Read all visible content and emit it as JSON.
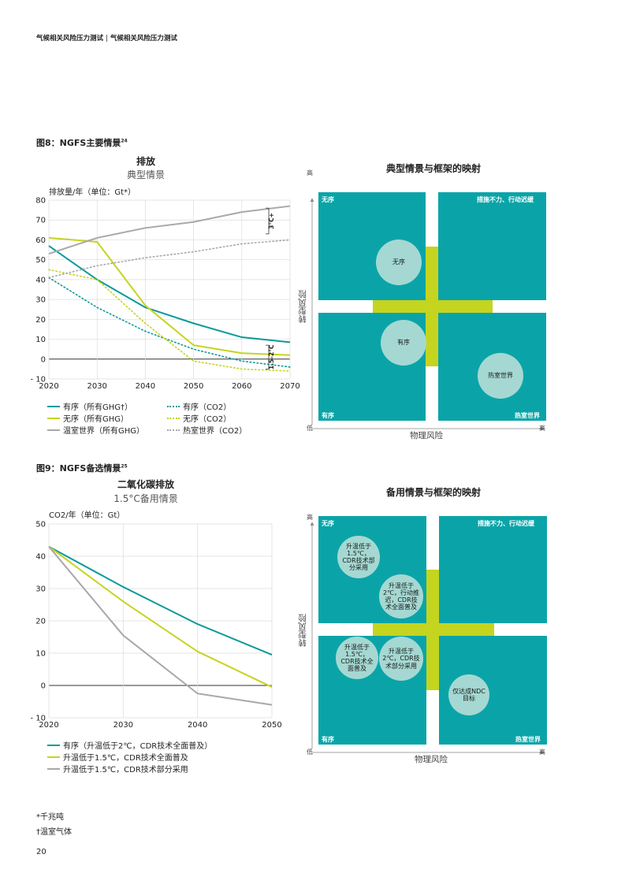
{
  "header": {
    "left": "气候相关风险压力测试",
    "separator": "|",
    "right": "气候相关风险压力测试"
  },
  "figure8": {
    "title": "图8：NGFS主要情景",
    "note_ref": "24",
    "chart_title": "排放",
    "chart_subtitle": "典型情景",
    "unit_label": "排放量/年（单位：Gt*）",
    "band_top": "3°C+",
    "band_bottom": "1.5–2°C",
    "legend": [
      "有序（所有GHG†）",
      "有序（CO2）",
      "无序（所有GHG）",
      "无序（CO2）",
      "温室世界（所有GHG）",
      "热室世界（CO2）"
    ],
    "map": {
      "title": "典型情景与框架的映射",
      "y_axis": "转型风险",
      "x_axis": "物理风险",
      "high": "高",
      "low": "低",
      "quadrants": {
        "tl": "无序",
        "tr": "措施不力、行动迟缓",
        "bl": "有序",
        "br": "热室世界"
      },
      "circles": [
        "无序",
        "有序",
        "热室世界"
      ]
    }
  },
  "figure9": {
    "title": "图9：NGFS备选情景",
    "note_ref": "25",
    "chart_title": "二氧化碳排放",
    "chart_subtitle": "1.5°C备用情景",
    "unit_label": "CO2/年（单位：Gt）",
    "legend": [
      "有序（升温低于2℃，CDR技术全面普及）",
      "升温低于1.5℃，CDR技术全面普及",
      "升温低于1.5℃，CDR技术部分采用"
    ],
    "map": {
      "title": "备用情景与框架的映射",
      "y_axis": "转型风险",
      "x_axis": "物理风险",
      "high": "高",
      "low": "低",
      "quadrants": {
        "tl": "无序",
        "tr": "措施不力、行动迟缓",
        "bl": "有序",
        "br": "热室世界"
      },
      "circles": [
        "升温低于1.5℃，CDR技术部分采用",
        "升温低于2℃，行动推迟，CDR技术全面普及",
        "升温低于1.5℃，CDR技术全面普及",
        "升温低于2℃，CDR技术部分采用",
        "仅达成NDC目标"
      ]
    }
  },
  "footnotes": [
    "*千兆吨",
    "†温室气体"
  ],
  "page_number": "20",
  "colors": {
    "teal": "#0a9a9b",
    "lime": "#c5d41f",
    "grey": "#a8a8a8",
    "quad": "#0aa4a8",
    "circle": "#a5d8d2"
  },
  "chart_data": [
    {
      "type": "line",
      "title": "排放",
      "subtitle": "典型情景",
      "ylabel": "排放量/年（单位：Gt*）",
      "x": [
        2020,
        2030,
        2040,
        2050,
        2060,
        2070
      ],
      "xlim": [
        2020,
        2070
      ],
      "ylim": [
        -10,
        80
      ],
      "yticks": [
        -10,
        0,
        10,
        20,
        30,
        40,
        50,
        60,
        70,
        80
      ],
      "series": [
        {
          "name": "有序（所有GHG†）",
          "color": "#0a9a9b",
          "style": "solid",
          "values": [
            57,
            40,
            26,
            18,
            11,
            8.5
          ]
        },
        {
          "name": "有序（CO2）",
          "color": "#0a9a9b",
          "style": "dotted",
          "values": [
            41,
            26,
            14,
            5,
            -1,
            -4
          ]
        },
        {
          "name": "无序（所有GHG）",
          "color": "#c5d41f",
          "style": "solid",
          "values": [
            61,
            59,
            27,
            7,
            3,
            2
          ]
        },
        {
          "name": "无序（CO2）",
          "color": "#c5d41f",
          "style": "dotted",
          "values": [
            45,
            40,
            18,
            -1,
            -5,
            -6
          ]
        },
        {
          "name": "温室世界（所有GHG）",
          "color": "#a8a8a8",
          "style": "solid",
          "values": [
            53,
            61,
            66,
            69,
            74,
            77
          ]
        },
        {
          "name": "热室世界（CO2）",
          "color": "#a8a8a8",
          "style": "dotted",
          "values": [
            41,
            47,
            51,
            54,
            58,
            60
          ]
        }
      ],
      "bands": [
        {
          "label": "3°C+",
          "from": 63,
          "to": 76
        },
        {
          "label": "1.5–2°C",
          "from": -5,
          "to": 7
        }
      ],
      "legend": "bottom"
    },
    {
      "type": "line",
      "title": "二氧化碳排放",
      "subtitle": "1.5°C备用情景",
      "ylabel": "CO2/年（单位：Gt）",
      "x": [
        2020,
        2030,
        2040,
        2050
      ],
      "xlim": [
        2020,
        2050
      ],
      "ylim": [
        -10,
        50
      ],
      "yticks": [
        -10,
        0,
        10,
        20,
        30,
        40,
        50
      ],
      "series": [
        {
          "name": "有序（升温低于2℃，CDR技术全面普及）",
          "color": "#0a9a9b",
          "style": "solid",
          "values": [
            43,
            30.5,
            19,
            9.5
          ]
        },
        {
          "name": "升温低于1.5℃，CDR技术全面普及",
          "color": "#c5d41f",
          "style": "solid",
          "values": [
            43,
            26,
            10.5,
            -0.5
          ]
        },
        {
          "name": "升温低于1.5℃，CDR技术部分采用",
          "color": "#a8a8a8",
          "style": "solid",
          "values": [
            43,
            15.5,
            -2.5,
            -6
          ]
        }
      ],
      "legend": "bottom"
    }
  ]
}
